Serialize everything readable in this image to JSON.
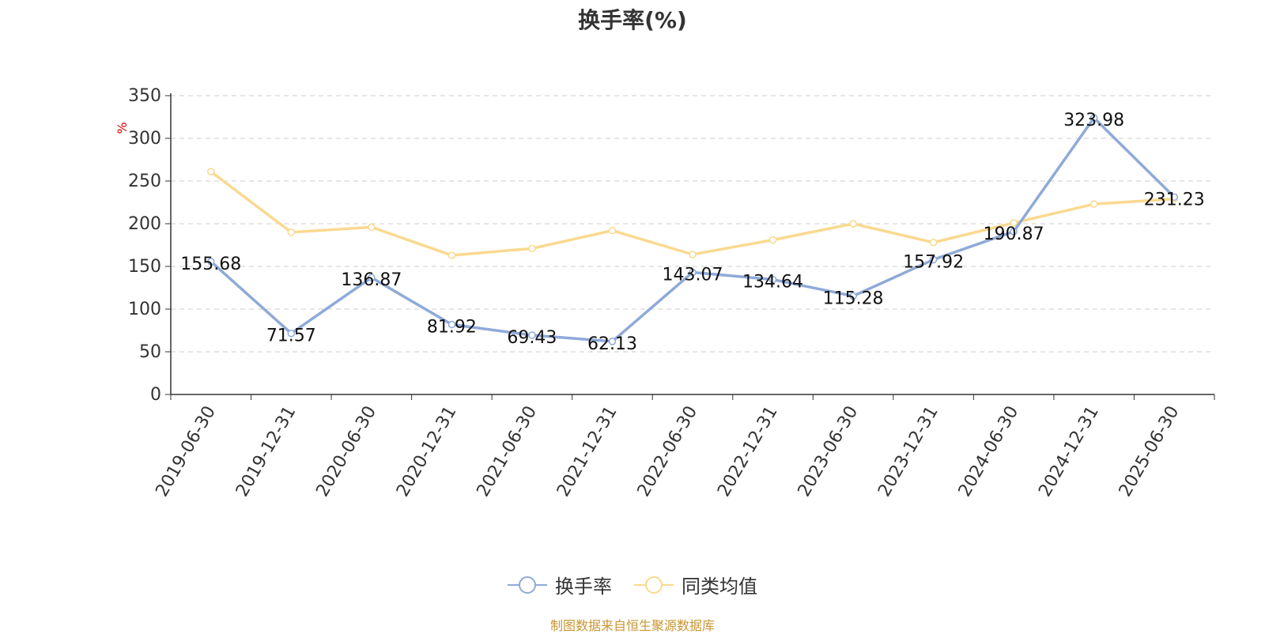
{
  "title": "换手率(%)",
  "source": "制图数据来自恒生聚源数据库",
  "chart_data": {
    "type": "line",
    "ylabel": "%",
    "ylim": [
      0,
      350
    ],
    "yticks": [
      0,
      50,
      100,
      150,
      200,
      250,
      300,
      350
    ],
    "grid": true,
    "legend_position": "bottom",
    "categories": [
      "2019-06-30",
      "2019-12-31",
      "2020-06-30",
      "2020-12-31",
      "2021-06-30",
      "2021-12-31",
      "2022-06-30",
      "2022-12-31",
      "2023-06-30",
      "2023-12-31",
      "2024-06-30",
      "2024-12-31",
      "2025-06-30"
    ],
    "series": [
      {
        "name": "换手率",
        "color": "#8eaad8",
        "show_labels": true,
        "values": [
          155.68,
          71.57,
          136.87,
          81.92,
          69.43,
          62.13,
          143.07,
          134.64,
          115.28,
          157.92,
          190.87,
          323.98,
          231.23
        ]
      },
      {
        "name": "同类均值",
        "color": "#fad98f",
        "show_labels": false,
        "values": [
          261,
          190,
          196,
          163,
          171,
          192,
          164,
          181,
          200,
          178,
          201,
          223,
          229
        ]
      }
    ]
  }
}
